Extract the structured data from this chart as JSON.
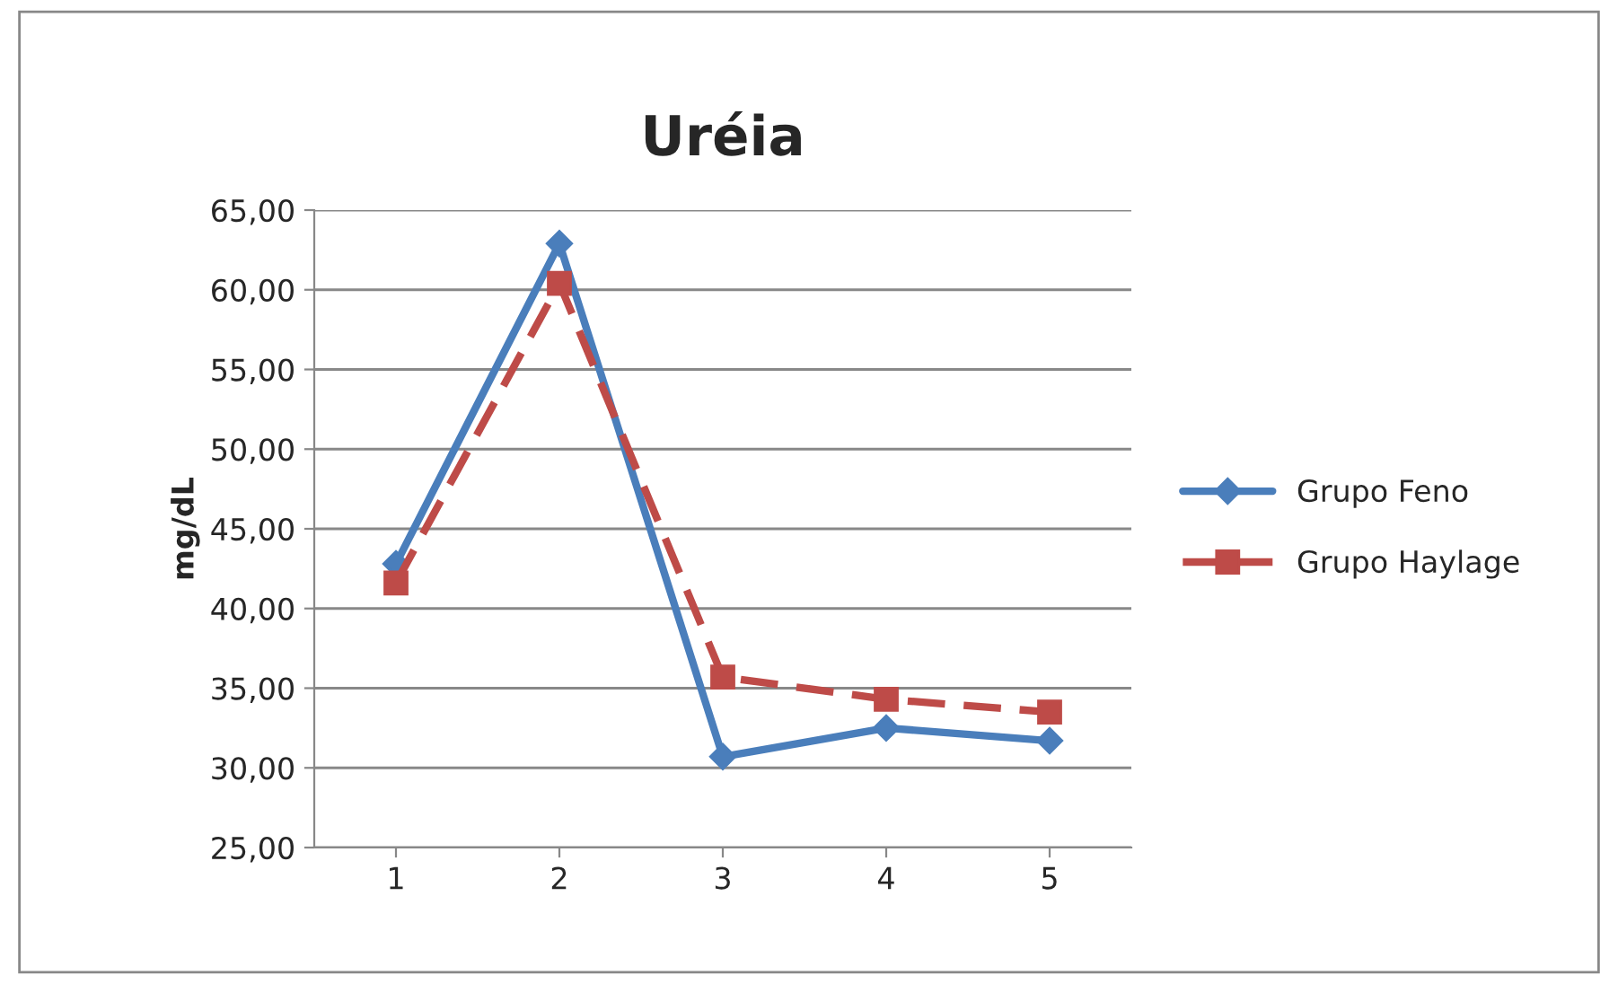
{
  "chart_data": {
    "type": "line",
    "title": "Uréia",
    "ylabel": "mg/dL",
    "categories": [
      "1",
      "2",
      "3",
      "4",
      "5"
    ],
    "series": [
      {
        "name": "Grupo Feno",
        "color": "#4a7ebb",
        "values": [
          42.8,
          62.9,
          30.7,
          32.5,
          31.7
        ],
        "marker": "diamond",
        "line_style": "solid"
      },
      {
        "name": "Grupo Haylage",
        "color": "#be4b48",
        "values": [
          41.6,
          60.4,
          35.7,
          34.3,
          33.5
        ],
        "marker": "square",
        "line_style": "dashed"
      }
    ],
    "ylim": [
      25,
      65
    ],
    "yticks": [
      {
        "value": 25,
        "label": "25,00"
      },
      {
        "value": 30,
        "label": "30,00"
      },
      {
        "value": 35,
        "label": "35,00"
      },
      {
        "value": 40,
        "label": "40,00"
      },
      {
        "value": 45,
        "label": "45,00"
      },
      {
        "value": 50,
        "label": "50,00"
      },
      {
        "value": 55,
        "label": "55,00"
      },
      {
        "value": 60,
        "label": "60,00"
      },
      {
        "value": 65,
        "label": "65,00"
      }
    ],
    "grid": "y",
    "legend": "right"
  }
}
